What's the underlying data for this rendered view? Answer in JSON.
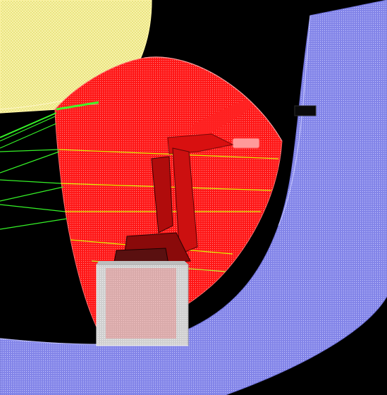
{
  "viewport": {
    "background": "#000000"
  },
  "colors": {
    "yellow_dome": "#f6f08a",
    "yellow_dome_edge": "#fff7b0",
    "red_workspace": "#ff1a1a",
    "red_workspace_dark": "#d40000",
    "blue_ring": "#8a8cf0",
    "blue_ring_dark": "#5a5cc8",
    "base_block": "#d8d8d8",
    "base_block_shadow": "#9a9a9a",
    "green_beam": "#38ff2a",
    "yellow_beam": "#d9ff00",
    "robot_arm": "#ff2a2a",
    "robot_dark": "#3a1a1a"
  },
  "icons": {
    "robot": "industrial-robot-arm",
    "base": "pedestal-block"
  }
}
